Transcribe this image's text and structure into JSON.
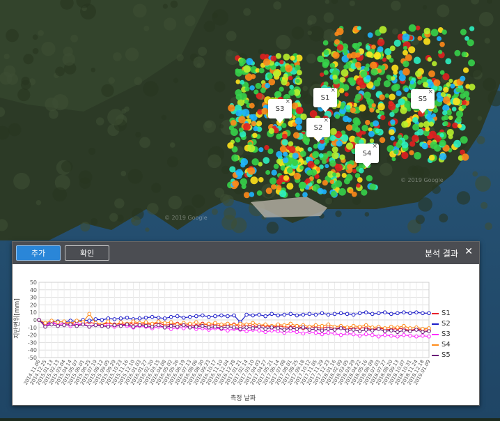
{
  "map": {
    "watermarks": [
      "© 2019 Google",
      "© 2019 Google"
    ],
    "markers": [
      "S1",
      "S2",
      "S3",
      "S4",
      "S5"
    ],
    "marker_close_icon": "close-icon",
    "colors": {
      "water": "#1f4565",
      "land": "#2c3a26",
      "high": "#e02020",
      "mid": "#36d24a",
      "low": "#1fb6ff"
    }
  },
  "panel": {
    "add_label": "추가",
    "ok_label": "확인",
    "title": "분석 결과",
    "close_symbol": "✕",
    "close_icon": "close-icon"
  },
  "chart_data": {
    "type": "line",
    "ylabel": "지반변위[mm]",
    "xlabel": "측정 날짜",
    "ylim": [
      -50,
      50
    ],
    "yticks": [
      50,
      40,
      30,
      20,
      10,
      0,
      -10,
      -20,
      -30,
      -40,
      -50
    ],
    "grid": true,
    "legend_position": "right",
    "x": [
      "2014.11.06",
      "2014.12.25",
      "2015.01.13",
      "2015.02.13",
      "2015.03.04",
      "2015.04.14",
      "2015.05.07",
      "2015.06.01",
      "2015.06.25",
      "2015.07.19",
      "2015.08.12",
      "2015.09.05",
      "2015.09.29",
      "2015.10.23",
      "2015.11.16",
      "2015.12.10",
      "2016.01.03",
      "2016.01.27",
      "2016.02.20",
      "2016.03.15",
      "2016.04.08",
      "2016.05.02",
      "2016.05.26",
      "2016.06.19",
      "2016.07.13",
      "2016.08.06",
      "2016.08.30",
      "2016.09.23",
      "2016.10.17",
      "2016.11.10",
      "2016.12.04",
      "2016.12.28",
      "2017.01.21",
      "2017.02.14",
      "2017.03.10",
      "2017.04.03",
      "2017.04.27",
      "2017.05.21",
      "2017.06.14",
      "2017.07.08",
      "2017.08.01",
      "2017.08.25",
      "2017.09.18",
      "2017.10.12",
      "2017.11.05",
      "2017.11.29",
      "2017.12.23",
      "2018.01.16",
      "2018.02.09",
      "2018.03.05",
      "2018.03.29",
      "2018.04.22",
      "2018.05.16",
      "2018.06.09",
      "2018.07.03",
      "2018.07.27",
      "2018.08.20",
      "2018.09.13",
      "2018.10.07",
      "2018.10.31",
      "2018.11.24",
      "2018.12.18",
      "2019.01.09"
    ],
    "series": [
      {
        "name": "S1",
        "color": "#e8202a",
        "values": [
          0,
          -6,
          -3,
          -6,
          -5,
          -4,
          -7,
          -5,
          -3,
          -5,
          -6,
          -4,
          -6,
          -5,
          -7,
          -4,
          -6,
          -5,
          -6,
          -4,
          -7,
          -6,
          -5,
          -7,
          -6,
          -8,
          -5,
          -7,
          -6,
          -8,
          -7,
          -6,
          -9,
          -7,
          -8,
          -9,
          -7,
          -10,
          -8,
          -9,
          -10,
          -8,
          -11,
          -9,
          -10,
          -11,
          -9,
          -12,
          -10,
          -11,
          -12,
          -10,
          -11,
          -13,
          -11,
          -12,
          -13,
          -11,
          -12,
          -14,
          -12,
          -13,
          -14
        ]
      },
      {
        "name": "S2",
        "color": "#1c1cc8",
        "values": [
          0,
          -5,
          -3,
          -2,
          -3,
          -1,
          -2,
          0,
          -1,
          1,
          0,
          2,
          1,
          2,
          3,
          1,
          2,
          3,
          4,
          3,
          2,
          4,
          5,
          3,
          4,
          5,
          6,
          4,
          5,
          6,
          5,
          6,
          -3,
          7,
          6,
          7,
          5,
          8,
          6,
          7,
          8,
          6,
          7,
          8,
          7,
          9,
          7,
          8,
          9,
          8,
          7,
          9,
          10,
          8,
          9,
          10,
          8,
          9,
          10,
          9,
          10,
          9,
          9
        ]
      },
      {
        "name": "S3",
        "color": "#ff2cff",
        "values": [
          0,
          -8,
          -4,
          -6,
          -5,
          -8,
          -6,
          -5,
          -9,
          -6,
          -8,
          -7,
          -9,
          -7,
          -8,
          -10,
          -8,
          -9,
          -11,
          -9,
          -10,
          -12,
          -10,
          -11,
          -9,
          -12,
          -11,
          -13,
          -11,
          -12,
          -14,
          -12,
          -13,
          -15,
          -13,
          -14,
          -16,
          -14,
          -15,
          -17,
          -15,
          -16,
          -18,
          -16,
          -17,
          -19,
          -17,
          -18,
          -20,
          -18,
          -19,
          -21,
          -19,
          -20,
          -22,
          -20,
          -21,
          -22,
          -20,
          -21,
          -22,
          -21,
          -22
        ]
      },
      {
        "name": "S4",
        "color": "#ff8c1a",
        "values": [
          0,
          -4,
          -1,
          -3,
          -2,
          -5,
          -1,
          -3,
          8,
          -4,
          -6,
          -2,
          -7,
          -3,
          -5,
          -2,
          -4,
          -3,
          -5,
          -2,
          -4,
          -3,
          -6,
          -4,
          -5,
          -3,
          -6,
          -5,
          -4,
          -6,
          -5,
          -7,
          -5,
          -6,
          -4,
          -7,
          -6,
          -8,
          -6,
          -7,
          -5,
          -8,
          -7,
          -9,
          -7,
          -8,
          -6,
          -9,
          -8,
          -10,
          -8,
          -9,
          -7,
          -10,
          -9,
          -11,
          -9,
          -10,
          -8,
          -11,
          -10,
          -12,
          -11
        ]
      },
      {
        "name": "S5",
        "color": "#6a1a78",
        "values": [
          0,
          -9,
          -6,
          -8,
          -7,
          -6,
          -8,
          -6,
          -9,
          -7,
          -8,
          -9,
          -7,
          -8,
          -6,
          -9,
          -7,
          -8,
          -9,
          -7,
          -10,
          -8,
          -9,
          -7,
          -10,
          -9,
          -8,
          -10,
          -9,
          -11,
          -9,
          -10,
          -12,
          -10,
          -11,
          -9,
          -12,
          -10,
          -11,
          -13,
          -11,
          -12,
          -10,
          -13,
          -12,
          -14,
          -12,
          -13,
          -11,
          -14,
          -13,
          -15,
          -13,
          -14,
          -12,
          -15,
          -14,
          -16,
          -14,
          -15,
          -13,
          -16,
          -15
        ]
      }
    ]
  }
}
